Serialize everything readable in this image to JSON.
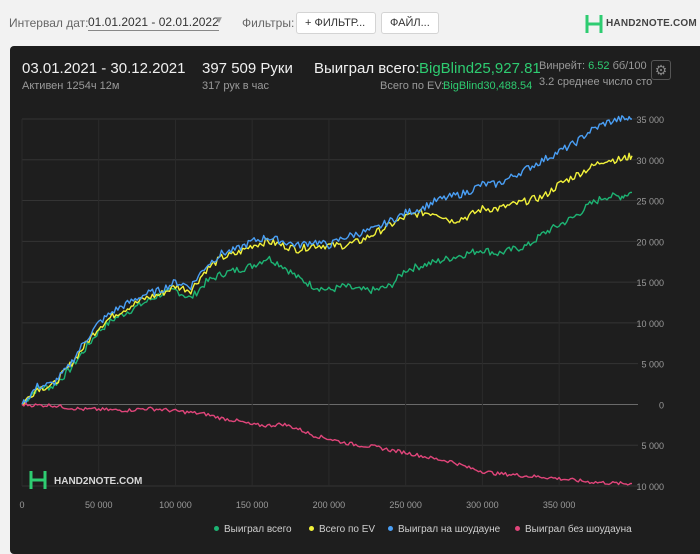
{
  "toolbar": {
    "date_label": "Интервал дат:",
    "date_range": "01.01.2021 - 02.01.2022",
    "filters_label": "Фильтры:",
    "filter_button": "+ ФИЛЬТР...",
    "files_button": "ФАЙЛ...",
    "logo_text": "HAND2NOTE.COM"
  },
  "summary": {
    "period": "03.01.2021 - 30.12.2021",
    "active": "Активен 1254ч 12м",
    "hands": "397 509 Руки",
    "hands_per_hour": "317 рук в час",
    "won_label": "Выиграл всего:",
    "won_value": "BigBlind25,927.81",
    "ev_label": "Всего по EV:",
    "ev_value": "BigBlind30,488.54",
    "winrate_label": "Винрейт:",
    "winrate_value": "6.52",
    "winrate_unit": "бб/100",
    "avg_text": "3.2 среднее число сто"
  },
  "watermark": "HAND2NOTE.COM",
  "colors": {
    "won": "#1db373",
    "ev": "#f2f23a",
    "showdown": "#4a9ff5",
    "no_showdown": "#e0457a"
  },
  "chart_data": {
    "type": "line",
    "xlim": [
      0,
      397509
    ],
    "ylim": [
      -10000,
      35000
    ],
    "x_ticks": [
      0,
      50000,
      100000,
      150000,
      200000,
      250000,
      300000,
      350000
    ],
    "x_tick_labels": [
      "0",
      "50 000",
      "100 000",
      "150 000",
      "200 000",
      "250 000",
      "300 000",
      "350 000"
    ],
    "y_ticks": [
      35000,
      30000,
      25000,
      20000,
      15000,
      10000,
      5000,
      0,
      -5000,
      -10000
    ],
    "y_tick_labels": [
      "35 000",
      "30 000",
      "25 000",
      "20 000",
      "15 000",
      "10 000",
      "5 000",
      "0",
      "5 000",
      "10 000"
    ],
    "grid": true,
    "legend_position": "bottom-right",
    "series": [
      {
        "name": "Выиграл всего",
        "color": "#1db373",
        "x": [
          0,
          10000,
          20000,
          30000,
          40000,
          50000,
          60000,
          70000,
          80000,
          90000,
          100000,
          110000,
          120000,
          130000,
          140000,
          150000,
          160000,
          170000,
          180000,
          190000,
          200000,
          210000,
          220000,
          230000,
          240000,
          250000,
          260000,
          270000,
          280000,
          290000,
          300000,
          310000,
          320000,
          330000,
          340000,
          350000,
          360000,
          370000,
          380000,
          390000,
          397509
        ],
        "values": [
          0,
          2000,
          2200,
          4000,
          6500,
          9000,
          10500,
          11500,
          12500,
          13500,
          14000,
          13000,
          15000,
          16000,
          16500,
          17000,
          18000,
          17000,
          15500,
          14500,
          14000,
          14500,
          14000,
          14000,
          14500,
          16500,
          17000,
          17500,
          18000,
          18500,
          19000,
          18500,
          19000,
          19500,
          21000,
          22000,
          23000,
          24500,
          25500,
          25500,
          26000
        ]
      },
      {
        "name": "Всего по EV",
        "color": "#f2f23a",
        "x": [
          0,
          10000,
          20000,
          30000,
          40000,
          50000,
          60000,
          70000,
          80000,
          90000,
          100000,
          110000,
          120000,
          130000,
          140000,
          150000,
          160000,
          170000,
          180000,
          190000,
          200000,
          210000,
          220000,
          230000,
          240000,
          250000,
          260000,
          270000,
          280000,
          290000,
          300000,
          310000,
          320000,
          330000,
          340000,
          350000,
          360000,
          370000,
          380000,
          390000,
          397509
        ],
        "values": [
          0,
          2000,
          2300,
          4500,
          7000,
          9500,
          11000,
          12000,
          13000,
          13500,
          14500,
          14000,
          16500,
          18000,
          18500,
          19500,
          20000,
          19500,
          19000,
          19500,
          19500,
          19500,
          20000,
          21000,
          22000,
          23000,
          23500,
          23500,
          22500,
          23000,
          24000,
          24000,
          24500,
          25000,
          25500,
          27000,
          28000,
          29000,
          30000,
          30000,
          30500
        ]
      },
      {
        "name": "Выиграл на шоудауне",
        "color": "#4a9ff5",
        "x": [
          0,
          10000,
          20000,
          30000,
          40000,
          50000,
          60000,
          70000,
          80000,
          90000,
          100000,
          110000,
          120000,
          130000,
          140000,
          150000,
          160000,
          170000,
          180000,
          190000,
          200000,
          210000,
          220000,
          230000,
          240000,
          250000,
          260000,
          270000,
          280000,
          290000,
          300000,
          310000,
          320000,
          330000,
          340000,
          350000,
          360000,
          370000,
          380000,
          390000,
          397509
        ],
        "values": [
          0,
          2200,
          2500,
          4500,
          7500,
          10000,
          11500,
          12500,
          13500,
          14000,
          15000,
          14500,
          17000,
          18500,
          19000,
          20000,
          20500,
          20000,
          19500,
          20000,
          19500,
          20500,
          21000,
          21500,
          22500,
          23500,
          24000,
          25000,
          25500,
          26000,
          27000,
          27000,
          28000,
          29000,
          30000,
          31000,
          32000,
          33500,
          34500,
          35000,
          35000
        ]
      },
      {
        "name": "Выиграл без шоудауна",
        "color": "#e0457a",
        "x": [
          0,
          10000,
          20000,
          30000,
          40000,
          50000,
          60000,
          70000,
          80000,
          90000,
          100000,
          110000,
          120000,
          130000,
          140000,
          150000,
          160000,
          170000,
          180000,
          190000,
          200000,
          210000,
          220000,
          230000,
          240000,
          250000,
          260000,
          270000,
          280000,
          290000,
          300000,
          310000,
          320000,
          330000,
          340000,
          350000,
          360000,
          370000,
          380000,
          390000,
          397509
        ],
        "values": [
          0,
          -100,
          -100,
          -400,
          -600,
          -600,
          -700,
          -700,
          -500,
          -600,
          -800,
          -1000,
          -1200,
          -1700,
          -2000,
          -2500,
          -2600,
          -2400,
          -3000,
          -3800,
          -4200,
          -4700,
          -5000,
          -5200,
          -5600,
          -5900,
          -6300,
          -6700,
          -7000,
          -7700,
          -8200,
          -8500,
          -8600,
          -8800,
          -8900,
          -9100,
          -9300,
          -9500,
          -9600,
          -9700,
          -9700
        ]
      }
    ]
  }
}
